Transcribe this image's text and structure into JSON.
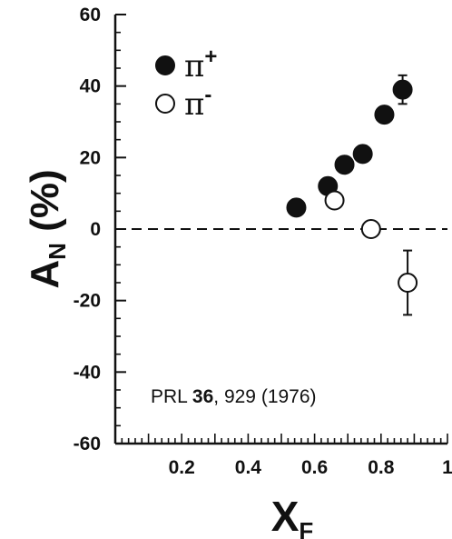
{
  "chart_data": {
    "type": "scatter",
    "xlabel": "X",
    "xlabel_sub": "F",
    "ylabel": "A",
    "ylabel_sub": "N",
    "ylabel_unit": "(%)",
    "xlim": [
      0,
      1
    ],
    "ylim": [
      -60,
      60
    ],
    "x_ticks": [
      0.2,
      0.4,
      0.6,
      0.8,
      1
    ],
    "x_tick_labels": [
      "0.2",
      "0.4",
      "0.6",
      "0.8",
      "1"
    ],
    "y_ticks": [
      -60,
      -40,
      -20,
      0,
      20,
      40,
      60
    ],
    "y_tick_labels": [
      "-60",
      "-40",
      "-20",
      "0",
      "20",
      "40",
      "60"
    ],
    "reference_line": {
      "y": 0,
      "style": "dashed"
    },
    "legend_position": "top-left",
    "annotation": {
      "prefix": "PRL ",
      "volume": "36",
      "suffix": ", 929 (1976)"
    },
    "series": [
      {
        "name": "π",
        "charge": "+",
        "marker": "filled-circle",
        "points": [
          {
            "x": 0.545,
            "y": 6,
            "err": 0
          },
          {
            "x": 0.64,
            "y": 12,
            "err": 0
          },
          {
            "x": 0.69,
            "y": 18,
            "err": 0
          },
          {
            "x": 0.745,
            "y": 21,
            "err": 0
          },
          {
            "x": 0.81,
            "y": 32,
            "err": 2
          },
          {
            "x": 0.865,
            "y": 39,
            "err": 4
          }
        ]
      },
      {
        "name": "π",
        "charge": "-",
        "marker": "open-circle",
        "points": [
          {
            "x": 0.66,
            "y": 8,
            "err": 0
          },
          {
            "x": 0.77,
            "y": 0,
            "err": 0
          },
          {
            "x": 0.88,
            "y": -15,
            "err": 9
          }
        ]
      }
    ]
  }
}
